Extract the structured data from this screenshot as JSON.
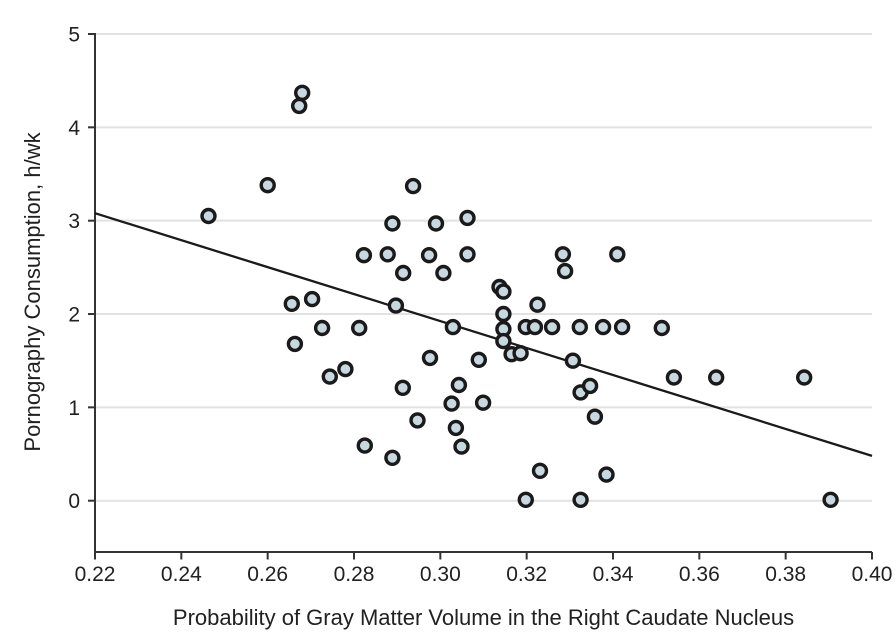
{
  "figure": {
    "background": "#ffffff"
  },
  "chart_data": {
    "type": "scatter",
    "title": "",
    "xlabel": "Probability of Gray Matter Volume in the Right Caudate Nucleus",
    "ylabel": "Pornography Consumption, h/wk",
    "xlim": [
      0.22,
      0.4
    ],
    "ylim": [
      0,
      5
    ],
    "grid": "horizontal-only",
    "legend": "none",
    "x_ticks": [
      0.22,
      0.24,
      0.26,
      0.28,
      0.3,
      0.32,
      0.34,
      0.36,
      0.38,
      0.4
    ],
    "x_tick_labels": [
      "0.22",
      "0.24",
      "0.26",
      "0.28",
      "0.30",
      "0.32",
      "0.34",
      "0.36",
      "0.38",
      "0.40"
    ],
    "y_ticks": [
      0,
      1,
      2,
      3,
      4,
      5
    ],
    "y_tick_labels": [
      "0",
      "1",
      "2",
      "3",
      "4",
      "5"
    ],
    "colors": {
      "background": "#ffffff",
      "grid": "#e2e2e2",
      "axis": "#333333",
      "text": "#212121",
      "marker_fill": "#c8d8df",
      "marker_stroke": "#1a1a1a",
      "trend": "#1a1a1a"
    },
    "marker": {
      "shape": "circle",
      "radius": 6.5,
      "stroke_width": 3.4,
      "fill": "#c8d8df",
      "stroke": "#1a1a1a"
    },
    "trend_line": {
      "x1": 0.22,
      "y1": 3.08,
      "x2": 0.4,
      "y2": 0.48,
      "color": "#1a1a1a",
      "slope_per_unit": -14.4
    },
    "points": [
      [
        0.2463,
        3.05
      ],
      [
        0.26,
        3.38
      ],
      [
        0.2673,
        4.23
      ],
      [
        0.268,
        4.37
      ],
      [
        0.2656,
        2.11
      ],
      [
        0.2703,
        2.16
      ],
      [
        0.2663,
        1.68
      ],
      [
        0.2726,
        1.85
      ],
      [
        0.2744,
        1.33
      ],
      [
        0.278,
        1.41
      ],
      [
        0.2812,
        1.85
      ],
      [
        0.2823,
        2.63
      ],
      [
        0.2825,
        0.59
      ],
      [
        0.2878,
        2.64
      ],
      [
        0.2889,
        0.46
      ],
      [
        0.2889,
        2.97
      ],
      [
        0.2897,
        2.09
      ],
      [
        0.2914,
        2.44
      ],
      [
        0.2913,
        1.21
      ],
      [
        0.2937,
        3.37
      ],
      [
        0.2947,
        0.86
      ],
      [
        0.2974,
        2.63
      ],
      [
        0.2976,
        1.53
      ],
      [
        0.299,
        2.97
      ],
      [
        0.3007,
        2.44
      ],
      [
        0.3029,
        1.86
      ],
      [
        0.3026,
        1.04
      ],
      [
        0.3043,
        1.24
      ],
      [
        0.3036,
        0.78
      ],
      [
        0.3049,
        0.58
      ],
      [
        0.3063,
        3.03
      ],
      [
        0.3063,
        2.64
      ],
      [
        0.3089,
        1.51
      ],
      [
        0.3099,
        1.05
      ],
      [
        0.3137,
        2.29
      ],
      [
        0.3146,
        2.24
      ],
      [
        0.3146,
        2.0
      ],
      [
        0.3146,
        1.84
      ],
      [
        0.3146,
        1.71
      ],
      [
        0.3165,
        1.57
      ],
      [
        0.3186,
        1.58
      ],
      [
        0.3198,
        0.01
      ],
      [
        0.3198,
        1.86
      ],
      [
        0.3219,
        1.86
      ],
      [
        0.3259,
        1.86
      ],
      [
        0.3323,
        1.86
      ],
      [
        0.3377,
        1.86
      ],
      [
        0.3421,
        1.86
      ],
      [
        0.3513,
        1.85
      ],
      [
        0.3225,
        2.1
      ],
      [
        0.3231,
        0.32
      ],
      [
        0.3284,
        2.64
      ],
      [
        0.3289,
        2.46
      ],
      [
        0.3307,
        1.5
      ],
      [
        0.3325,
        0.01
      ],
      [
        0.3325,
        1.16
      ],
      [
        0.3347,
        1.23
      ],
      [
        0.3358,
        0.9
      ],
      [
        0.3385,
        0.28
      ],
      [
        0.341,
        2.64
      ],
      [
        0.3541,
        1.32
      ],
      [
        0.3639,
        1.32
      ],
      [
        0.3843,
        1.32
      ],
      [
        0.3904,
        0.01
      ]
    ]
  }
}
